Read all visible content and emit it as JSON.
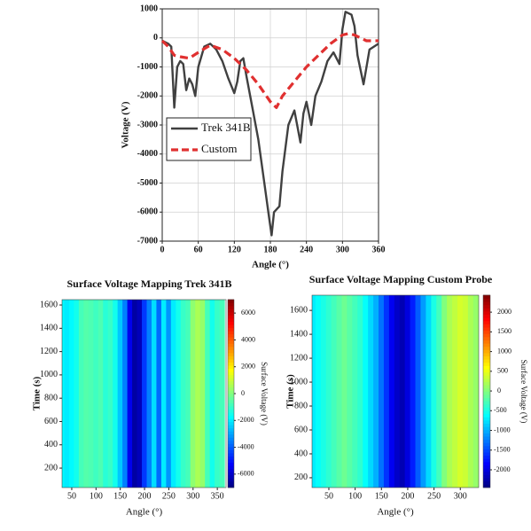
{
  "chart_data": [
    {
      "type": "line",
      "x_label": "Angle (°)",
      "y_label": "Voltage (V)",
      "xlim": [
        0,
        360
      ],
      "ylim": [
        -7000,
        1000
      ],
      "xticks": [
        0,
        60,
        120,
        180,
        240,
        300,
        360
      ],
      "yticks": [
        -7000,
        -6000,
        -5000,
        -4000,
        -3000,
        -2000,
        -1000,
        0,
        1000
      ],
      "legend": "center-left",
      "series": [
        {
          "name": "Trek 341B",
          "color": "#404040",
          "line_style": "solid",
          "x": [
            0,
            10,
            15,
            20,
            25,
            30,
            35,
            40,
            45,
            50,
            55,
            60,
            70,
            80,
            90,
            100,
            110,
            120,
            125,
            130,
            135,
            140,
            150,
            160,
            170,
            178,
            182,
            186,
            195,
            200,
            210,
            220,
            230,
            235,
            240,
            248,
            255,
            265,
            275,
            285,
            295,
            300,
            305,
            315,
            320,
            325,
            335,
            345,
            360
          ],
          "values": [
            -100,
            -200,
            -300,
            -2400,
            -1000,
            -800,
            -900,
            -1800,
            -1400,
            -1600,
            -2000,
            -1000,
            -300,
            -200,
            -400,
            -800,
            -1400,
            -1900,
            -1500,
            -800,
            -700,
            -1300,
            -2400,
            -3500,
            -5000,
            -6200,
            -6800,
            -6000,
            -5800,
            -4600,
            -3000,
            -2500,
            -3600,
            -2600,
            -2200,
            -3000,
            -2000,
            -1500,
            -800,
            -500,
            -900,
            300,
            900,
            800,
            400,
            -600,
            -1600,
            -400,
            -200
          ]
        },
        {
          "name": "Custom",
          "color": "#e03030",
          "line_style": "dashed",
          "x": [
            0,
            10,
            20,
            30,
            45,
            60,
            80,
            100,
            120,
            140,
            160,
            180,
            190,
            200,
            220,
            240,
            260,
            280,
            300,
            310,
            320,
            340,
            360
          ],
          "values": [
            -100,
            -300,
            -600,
            -650,
            -700,
            -500,
            -250,
            -400,
            -700,
            -1100,
            -1600,
            -2200,
            -2400,
            -2000,
            -1500,
            -1000,
            -600,
            -200,
            100,
            150,
            100,
            -100,
            -100
          ]
        }
      ]
    },
    {
      "type": "heatmap",
      "title": "Surface Voltage Mapping Trek 341B",
      "x_label": "Angle (°)",
      "y_label": "Time (s)",
      "colorbar_label": "Surface Voltage (V)",
      "colormap": "jet",
      "xlim": [
        30,
        368
      ],
      "ylim": [
        33,
        1646
      ],
      "xticks": [
        50,
        100,
        150,
        200,
        250,
        300,
        350
      ],
      "yticks": [
        200,
        400,
        600,
        800,
        1000,
        1200,
        1400,
        1600
      ],
      "zlim": [
        -7000,
        7000
      ],
      "zticks": [
        -6000,
        -4000,
        -2000,
        0,
        2000,
        4000,
        6000
      ],
      "x": [
        30,
        40,
        50,
        60,
        70,
        80,
        90,
        100,
        110,
        120,
        130,
        140,
        150,
        160,
        170,
        180,
        190,
        200,
        210,
        220,
        230,
        240,
        250,
        260,
        270,
        280,
        290,
        300,
        310,
        320,
        330,
        340,
        350,
        360
      ],
      "values": [
        -1800,
        -2000,
        -1800,
        -1500,
        -800,
        -600,
        -700,
        -900,
        -700,
        -1200,
        -1000,
        -1500,
        -2500,
        -3500,
        -5500,
        -6500,
        -6200,
        -4500,
        -3500,
        -2200,
        -3800,
        -2000,
        -3200,
        -2000,
        -1500,
        -1000,
        -800,
        200,
        600,
        300,
        -800,
        -1500,
        -1000,
        -800
      ]
    },
    {
      "type": "heatmap",
      "title": "Surface Voltage Mapping Custom Probe",
      "x_label": "Angle (°)",
      "y_label": "Time (s)",
      "colorbar_label": "Surface Voltage (V)",
      "colormap": "jet",
      "xlim": [
        18,
        335
      ],
      "ylim": [
        118,
        1727
      ],
      "xticks": [
        50,
        100,
        150,
        200,
        250,
        300
      ],
      "yticks": [
        200,
        400,
        600,
        800,
        1000,
        1200,
        1400,
        1600
      ],
      "zlim": [
        -2450,
        2430
      ],
      "zticks": [
        -2000,
        -1500,
        -1000,
        -500,
        0,
        500,
        1000,
        1500,
        2000
      ],
      "x": [
        20,
        30,
        40,
        50,
        60,
        70,
        80,
        90,
        100,
        110,
        120,
        130,
        140,
        150,
        160,
        170,
        180,
        190,
        200,
        210,
        220,
        230,
        240,
        250,
        260,
        270,
        280,
        290,
        300,
        310,
        320,
        330
      ],
      "values": [
        -700,
        -600,
        -500,
        -400,
        -300,
        -200,
        -100,
        -200,
        -300,
        -400,
        -600,
        -800,
        -1000,
        -1300,
        -1600,
        -1900,
        -2100,
        -2200,
        -2000,
        -1700,
        -1400,
        -1100,
        -800,
        -500,
        -300,
        0,
        200,
        300,
        400,
        350,
        200,
        100
      ]
    }
  ]
}
